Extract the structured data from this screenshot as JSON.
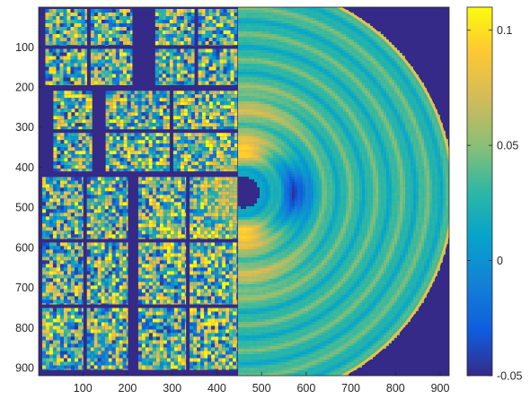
{
  "chart_data": {
    "type": "heatmap",
    "title": "",
    "xlabel": "",
    "ylabel": "",
    "xlim": [
      1,
      920
    ],
    "ylim": [
      920,
      1
    ],
    "x_ticks": [
      "100",
      "200",
      "300",
      "400",
      "500",
      "600",
      "700",
      "800",
      "900"
    ],
    "y_ticks": [
      "100",
      "200",
      "300",
      "400",
      "500",
      "600",
      "700",
      "800",
      "900"
    ],
    "colorbar": {
      "min": -0.05,
      "max": 0.11,
      "ticks": [
        "0.1",
        "0.05",
        "0",
        "-0.05"
      ],
      "colormap": "parula"
    },
    "background_value": -0.05,
    "left_half": {
      "x_range": [
        1,
        455
      ],
      "content": "detector tiles with noisy pixel values",
      "tile_panels": [
        {
          "x": [
            12,
            215
          ],
          "y": [
            1,
            200
          ]
        },
        {
          "x": [
            258,
            450
          ],
          "y": [
            1,
            200
          ]
        },
        {
          "x": [
            30,
            125
          ],
          "y": [
            205,
            415
          ]
        },
        {
          "x": [
            147,
            450
          ],
          "y": [
            205,
            415
          ]
        },
        {
          "x": [
            5,
            205
          ],
          "y": [
            420,
            910
          ]
        },
        {
          "x": [
            220,
            450
          ],
          "y": [
            420,
            910
          ]
        }
      ]
    },
    "right_half": {
      "x_range": [
        455,
        920
      ],
      "content": "radially averaged scattering pattern",
      "beam_center": [
        460,
        463
      ],
      "beamstop_radius": 35,
      "outer_radius": 470,
      "features": [
        {
          "angle_deg": -90,
          "radius": 95,
          "value": 0.1
        },
        {
          "angle_deg": 90,
          "radius": 95,
          "value": 0.1
        },
        {
          "angle_deg": 0,
          "radius": 120,
          "value": -0.04
        }
      ],
      "outer_ring_value": 0.08
    }
  }
}
